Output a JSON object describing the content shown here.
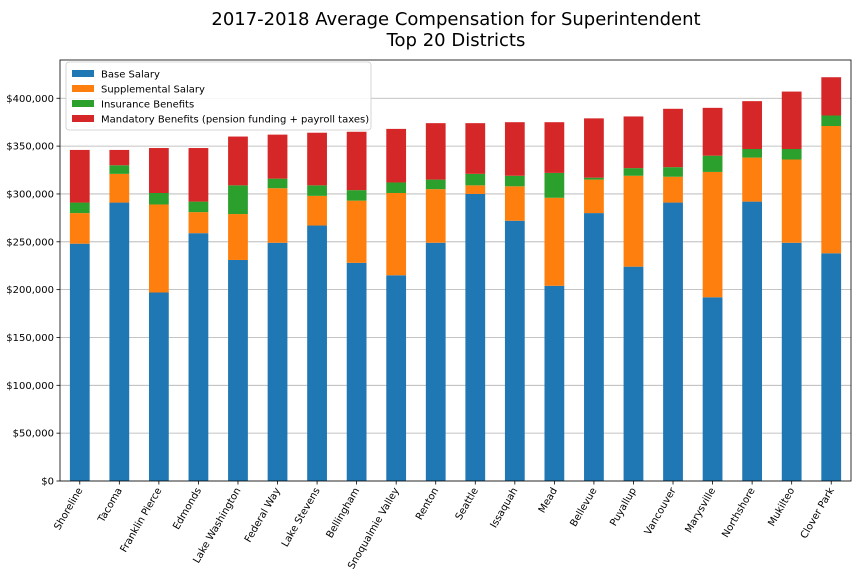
{
  "chart_data": {
    "type": "bar",
    "stacked": true,
    "title": "2017-2018 Average Compensation for Superintendent",
    "subtitle": "Top 20 Districts",
    "xlabel": "",
    "ylabel": "",
    "ylim": [
      0,
      440000
    ],
    "yticks": [
      0,
      50000,
      100000,
      150000,
      200000,
      250000,
      300000,
      350000,
      400000
    ],
    "ytick_labels": [
      "$0",
      "$50,000",
      "$100,000",
      "$150,000",
      "$200,000",
      "$250,000",
      "$300,000",
      "$350,000",
      "$400,000"
    ],
    "grid": "horizontal",
    "legend_position": "top-left",
    "categories": [
      "Shoreline",
      "Tacoma",
      "Franklin Pierce",
      "Edmonds",
      "Lake Washington",
      "Federal Way",
      "Lake Stevens",
      "Bellingham",
      "Snoqualmie Valley",
      "Renton",
      "Seattle",
      "Issaquah",
      "Mead",
      "Bellevue",
      "Puyallup",
      "Vancouver",
      "Marysville",
      "Northshore",
      "Mukilteo",
      "Clover Park"
    ],
    "series": [
      {
        "name": "Base Salary",
        "color": "#1f77b4",
        "values": [
          248000,
          291000,
          197000,
          259000,
          231000,
          249000,
          267000,
          228000,
          215000,
          249000,
          300000,
          272000,
          204000,
          280000,
          224000,
          291000,
          192000,
          292000,
          249000,
          238000
        ]
      },
      {
        "name": "Supplemental Salary",
        "color": "#ff7f0e",
        "values": [
          32000,
          30000,
          92000,
          22000,
          48000,
          57000,
          31000,
          65000,
          86000,
          56000,
          9000,
          36000,
          92000,
          35000,
          95000,
          27000,
          131000,
          46000,
          87000,
          133000
        ]
      },
      {
        "name": "Insurance Benefits",
        "color": "#2ca02c",
        "values": [
          11000,
          9000,
          12000,
          11000,
          30000,
          10000,
          11000,
          11000,
          11000,
          10000,
          12000,
          11000,
          26000,
          2000,
          8000,
          10000,
          17000,
          9000,
          11000,
          11000
        ]
      },
      {
        "name": "Mandatory Benefits (pension funding + payroll taxes)",
        "color": "#d62728",
        "values": [
          55000,
          16000,
          47000,
          56000,
          51000,
          46000,
          55000,
          61000,
          56000,
          59000,
          53000,
          56000,
          53000,
          62000,
          54000,
          61000,
          50000,
          50000,
          60000,
          40000
        ]
      }
    ]
  }
}
